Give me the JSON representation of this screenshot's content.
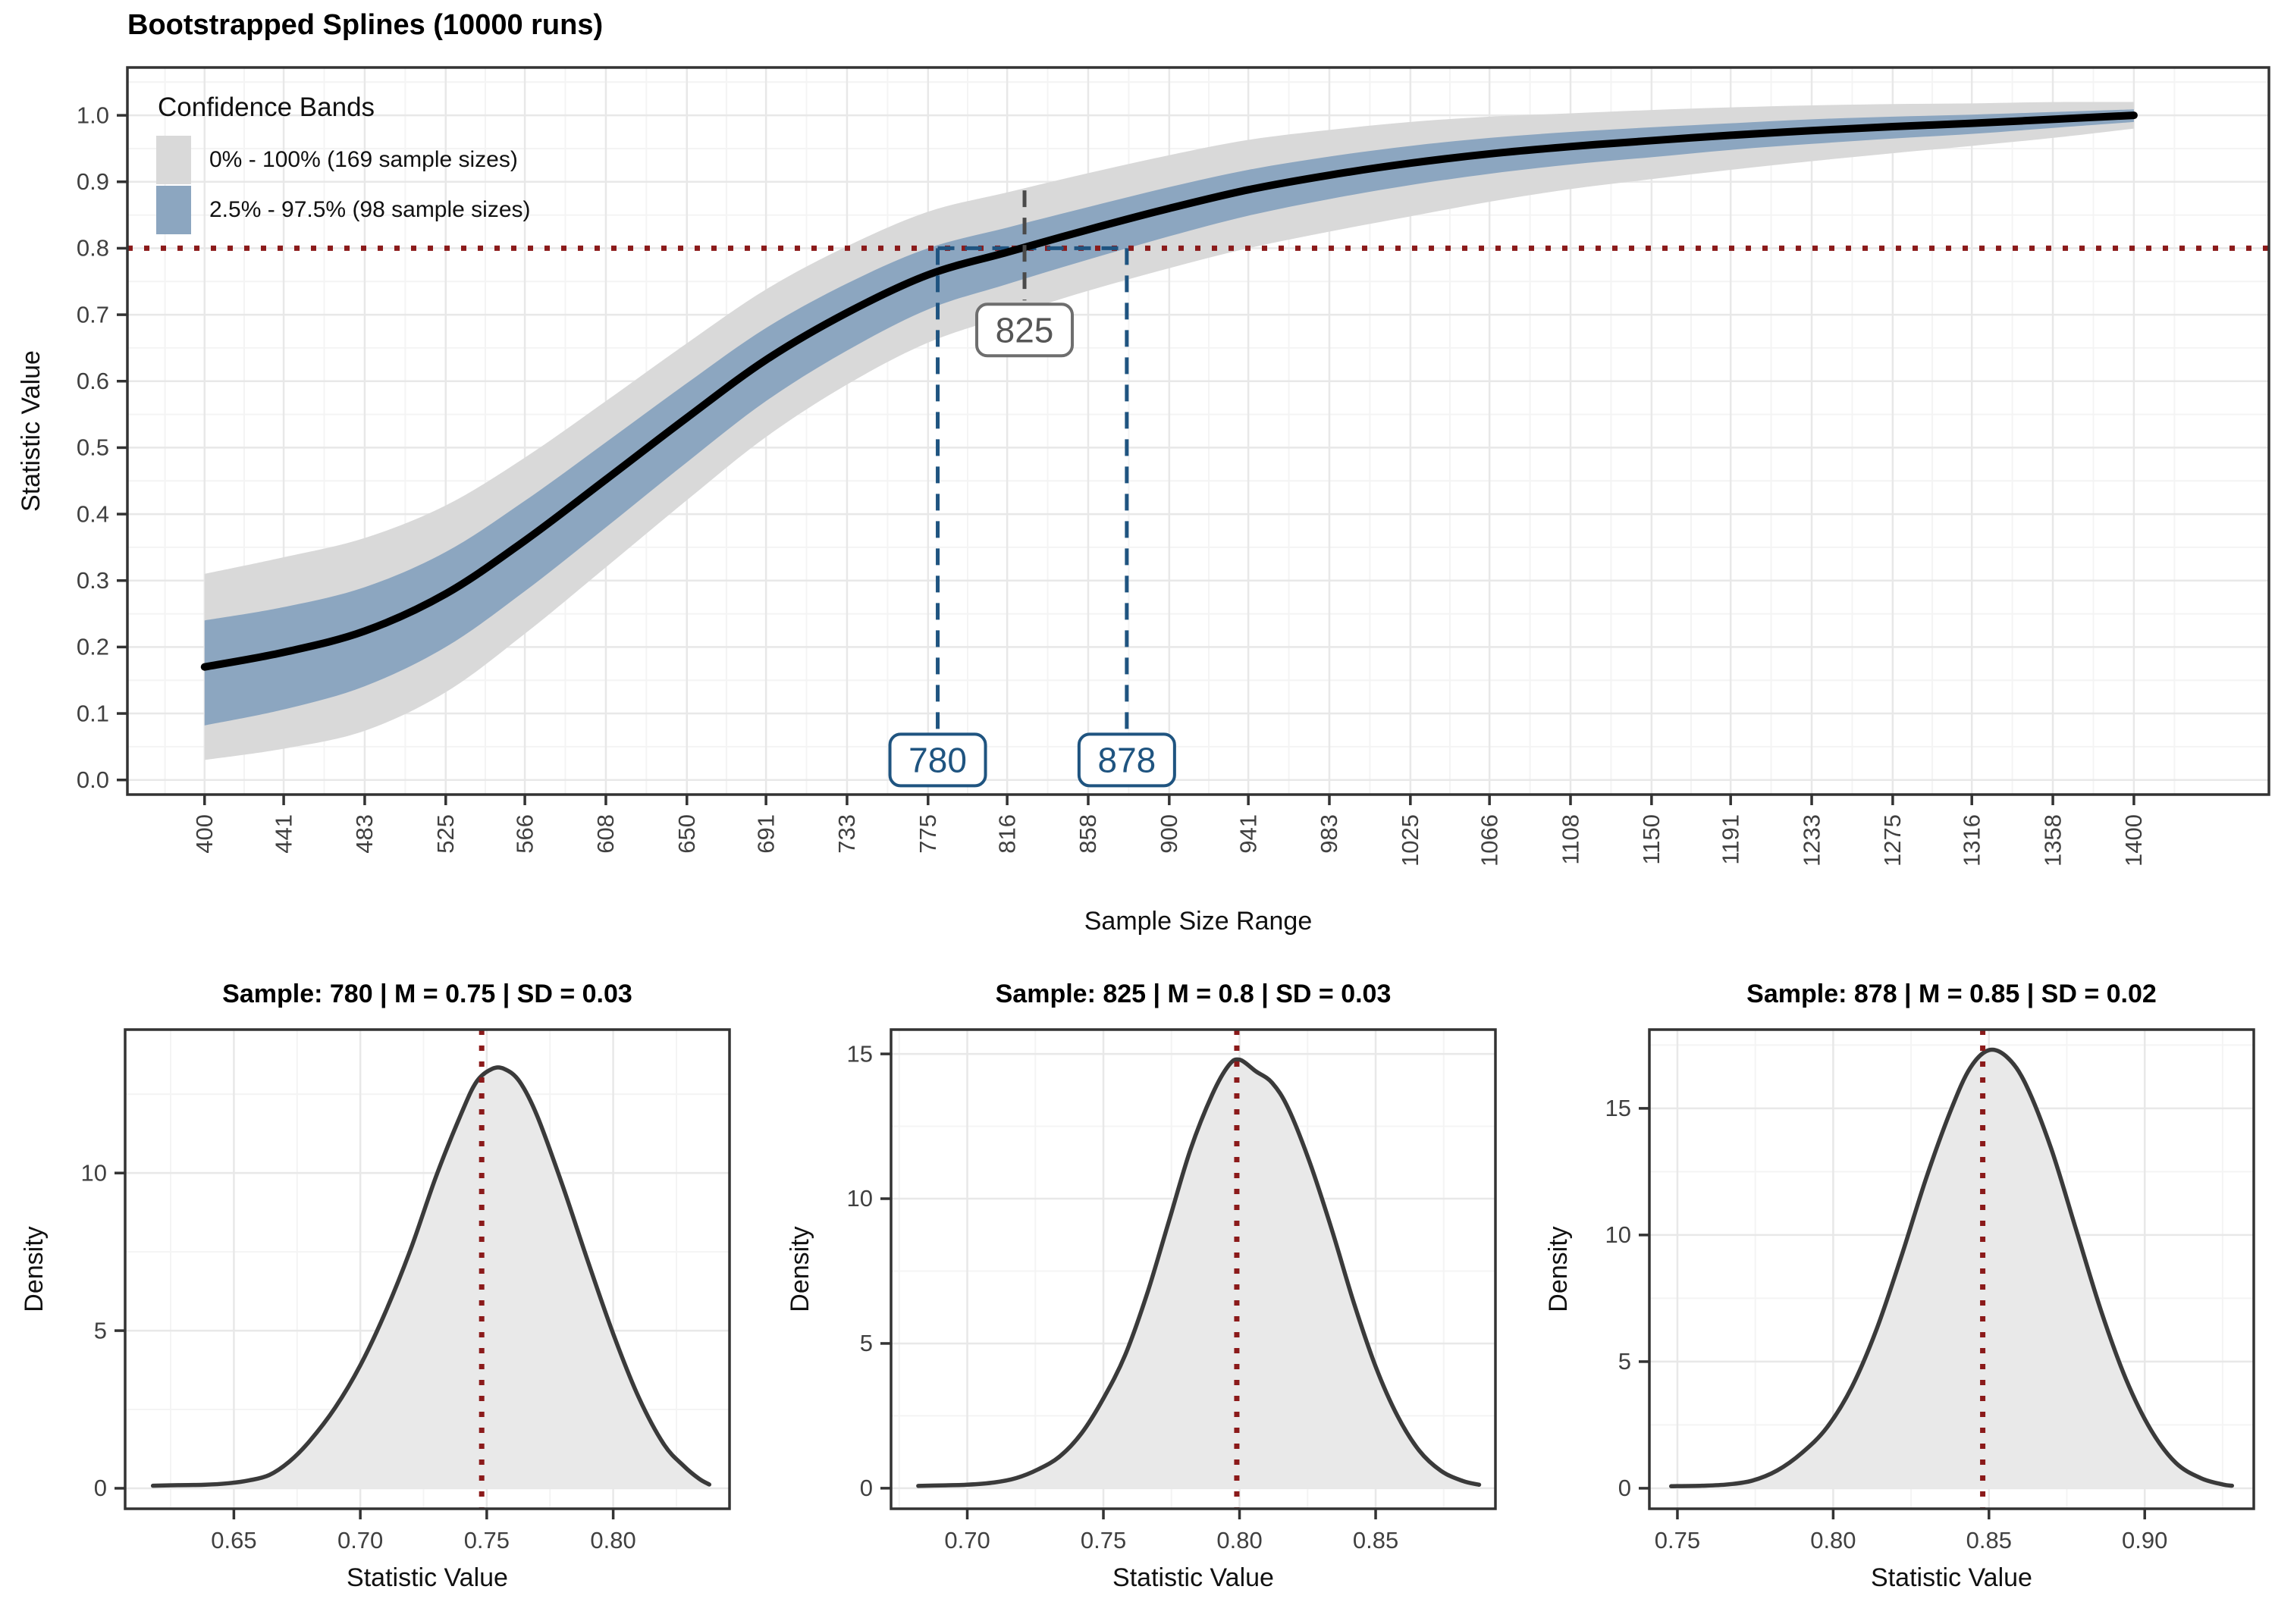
{
  "page": {
    "background": "#ffffff"
  },
  "colors": {
    "band_outer": "#D9D9D9",
    "band_inner": "#8CA6C0",
    "spline": "#000000",
    "target_red": "#8B1A1A",
    "interval_blue": "#1F5480",
    "crossing_gray": "#4A4A4A",
    "grid_major": "#E8E8E8",
    "grid_minor": "#F4F4F4",
    "panel_border": "#333333",
    "tick_label": "#404040"
  },
  "chart_data": [
    {
      "id": "spline-main",
      "type": "line",
      "title": "Bootstrapped Splines (10000 runs)",
      "xlabel": "Sample Size Range",
      "ylabel": "Statistic Value",
      "legend": {
        "title": "Confidence Bands",
        "position": "top-left",
        "entries": [
          {
            "label": "0% - 100% (169 sample sizes)",
            "color": "#D9D9D9"
          },
          {
            "label": "2.5% - 97.5% (98 sample sizes)",
            "color": "#8CA6C0"
          }
        ]
      },
      "xlim": [
        360,
        1470
      ],
      "ylim": [
        -0.022,
        1.072
      ],
      "x_tick_values": [
        400,
        441,
        483,
        525,
        566,
        608,
        650,
        691,
        733,
        775,
        816,
        858,
        900,
        941,
        983,
        1025,
        1066,
        1108,
        1150,
        1191,
        1233,
        1275,
        1316,
        1358,
        1400
      ],
      "x_tick_labels": [
        "400",
        "441",
        "483",
        "525",
        "566",
        "608",
        "650",
        "691",
        "733",
        "775",
        "816",
        "858",
        "900",
        "941",
        "983",
        "1025",
        "1066",
        "1108",
        "1150",
        "1191",
        "1233",
        "1275",
        "1316",
        "1358",
        "1400"
      ],
      "y_tick_values": [
        0,
        0.1,
        0.2,
        0.3,
        0.4,
        0.5,
        0.6,
        0.7,
        0.8,
        0.9,
        1.0
      ],
      "y_tick_labels": [
        "0.0",
        "0.1",
        "0.2",
        "0.3",
        "0.4",
        "0.5",
        "0.6",
        "0.7",
        "0.8",
        "0.9",
        "1.0"
      ],
      "x": [
        400,
        441,
        483,
        525,
        566,
        608,
        650,
        691,
        733,
        775,
        816,
        858,
        900,
        941,
        983,
        1025,
        1066,
        1108,
        1150,
        1191,
        1233,
        1275,
        1316,
        1358,
        1400
      ],
      "series": [
        {
          "name": "0% - 100% (169 sample sizes)",
          "type": "band",
          "color": "#D9D9D9",
          "upper": [
            0.31,
            0.335,
            0.364,
            0.413,
            0.485,
            0.57,
            0.657,
            0.738,
            0.803,
            0.855,
            0.884,
            0.913,
            0.94,
            0.963,
            0.978,
            0.99,
            0.998,
            1.003,
            1.008,
            1.012,
            1.015,
            1.017,
            1.018,
            1.02,
            1.02
          ],
          "lower": [
            0.03,
            0.047,
            0.074,
            0.132,
            0.22,
            0.32,
            0.421,
            0.516,
            0.595,
            0.658,
            0.698,
            0.736,
            0.77,
            0.8,
            0.825,
            0.848,
            0.87,
            0.889,
            0.904,
            0.918,
            0.931,
            0.943,
            0.954,
            0.966,
            0.98
          ]
        },
        {
          "name": "2.5% - 97.5% (98 sample sizes)",
          "type": "band",
          "color": "#8CA6C0",
          "upper": [
            0.24,
            0.26,
            0.29,
            0.343,
            0.42,
            0.508,
            0.597,
            0.68,
            0.747,
            0.8,
            0.831,
            0.862,
            0.892,
            0.918,
            0.938,
            0.954,
            0.966,
            0.975,
            0.982,
            0.988,
            0.994,
            0.998,
            1.001,
            1.005,
            1.009
          ],
          "lower": [
            0.082,
            0.106,
            0.141,
            0.2,
            0.284,
            0.38,
            0.478,
            0.57,
            0.646,
            0.708,
            0.746,
            0.783,
            0.818,
            0.849,
            0.874,
            0.895,
            0.912,
            0.926,
            0.937,
            0.948,
            0.957,
            0.965,
            0.972,
            0.981,
            0.99
          ]
        },
        {
          "name": "Mean bootstrapped spline",
          "type": "line",
          "color": "#000000",
          "values": [
            0.17,
            0.192,
            0.224,
            0.28,
            0.36,
            0.452,
            0.545,
            0.632,
            0.703,
            0.76,
            0.794,
            0.828,
            0.86,
            0.888,
            0.91,
            0.928,
            0.942,
            0.953,
            0.962,
            0.97,
            0.977,
            0.983,
            0.988,
            0.994,
            1.0
          ]
        }
      ],
      "annotations": {
        "target_hline": {
          "y": 0.8,
          "color": "#8B1A1A",
          "style": "dotted"
        },
        "interval_segment": {
          "y": 0.8,
          "x1": 780,
          "x2": 878,
          "color": "#1F5480",
          "style": "dashed"
        },
        "vlines": [
          {
            "x": 780,
            "label": "780",
            "from_y": 0.8,
            "label_at_y": 0.03,
            "color": "#1F5480",
            "text_color": "#1F5480",
            "border_color": "#1F5480",
            "style": "dashed"
          },
          {
            "x": 878,
            "label": "878",
            "from_y": 0.8,
            "label_at_y": 0.03,
            "color": "#1F5480",
            "text_color": "#1F5480",
            "border_color": "#1F5480",
            "style": "dashed"
          },
          {
            "x": 825,
            "label": "825",
            "from_y": 0.887,
            "label_at_y": 0.677,
            "color": "#4A4A4A",
            "text_color": "#565656",
            "border_color": "#6E6E6E",
            "style": "dashed"
          }
        ]
      }
    },
    {
      "id": "density-780",
      "type": "area",
      "title": "Sample: 780 | M = 0.75 | SD = 0.03",
      "sample": 780,
      "mean": 0.75,
      "sd": 0.03,
      "xlabel": "Statistic Value",
      "ylabel": "Density",
      "xlim": [
        0.607,
        0.846
      ],
      "ylim": [
        -0.65,
        14.55
      ],
      "x_tick_values": [
        0.65,
        0.7,
        0.75,
        0.8
      ],
      "x_tick_labels": [
        "0.65",
        "0.70",
        "0.75",
        "0.80"
      ],
      "y_tick_values": [
        0,
        5,
        10
      ],
      "y_tick_labels": [
        "0",
        "5",
        "10"
      ],
      "mean_line": {
        "x": 0.748,
        "color": "#8B1A1A",
        "style": "dotted"
      },
      "curve": {
        "stroke": "#3A3A3A",
        "fill": "#E9E9E9",
        "points": [
          [
            0.618,
            0.08
          ],
          [
            0.628,
            0.1
          ],
          [
            0.638,
            0.11
          ],
          [
            0.648,
            0.16
          ],
          [
            0.656,
            0.25
          ],
          [
            0.664,
            0.42
          ],
          [
            0.672,
            0.85
          ],
          [
            0.68,
            1.5
          ],
          [
            0.69,
            2.55
          ],
          [
            0.7,
            3.9
          ],
          [
            0.71,
            5.6
          ],
          [
            0.72,
            7.6
          ],
          [
            0.73,
            9.9
          ],
          [
            0.74,
            11.9
          ],
          [
            0.746,
            12.9
          ],
          [
            0.752,
            13.3
          ],
          [
            0.757,
            13.3
          ],
          [
            0.763,
            12.9
          ],
          [
            0.77,
            11.8
          ],
          [
            0.78,
            9.6
          ],
          [
            0.79,
            7.2
          ],
          [
            0.8,
            4.9
          ],
          [
            0.81,
            2.9
          ],
          [
            0.82,
            1.4
          ],
          [
            0.828,
            0.7
          ],
          [
            0.834,
            0.3
          ],
          [
            0.838,
            0.12
          ]
        ]
      }
    },
    {
      "id": "density-825",
      "type": "area",
      "title": "Sample: 825 | M = 0.8 | SD = 0.03",
      "sample": 825,
      "mean": 0.8,
      "sd": 0.03,
      "xlabel": "Statistic Value",
      "ylabel": "Density",
      "xlim": [
        0.672,
        0.894
      ],
      "ylim": [
        -0.71,
        15.84
      ],
      "x_tick_values": [
        0.7,
        0.75,
        0.8,
        0.85
      ],
      "x_tick_labels": [
        "0.70",
        "0.75",
        "0.80",
        "0.85"
      ],
      "y_tick_values": [
        0,
        5,
        10,
        15
      ],
      "y_tick_labels": [
        "0",
        "5",
        "10",
        "15"
      ],
      "mean_line": {
        "x": 0.799,
        "color": "#8B1A1A",
        "style": "dotted"
      },
      "curve": {
        "stroke": "#3A3A3A",
        "fill": "#E9E9E9",
        "points": [
          [
            0.682,
            0.08
          ],
          [
            0.692,
            0.1
          ],
          [
            0.7,
            0.12
          ],
          [
            0.71,
            0.2
          ],
          [
            0.718,
            0.35
          ],
          [
            0.726,
            0.65
          ],
          [
            0.734,
            1.1
          ],
          [
            0.742,
            1.9
          ],
          [
            0.75,
            3.1
          ],
          [
            0.758,
            4.6
          ],
          [
            0.766,
            6.7
          ],
          [
            0.774,
            9.2
          ],
          [
            0.782,
            11.7
          ],
          [
            0.79,
            13.6
          ],
          [
            0.796,
            14.6
          ],
          [
            0.8,
            14.8
          ],
          [
            0.806,
            14.4
          ],
          [
            0.812,
            14.0
          ],
          [
            0.818,
            13.1
          ],
          [
            0.826,
            11.2
          ],
          [
            0.834,
            8.9
          ],
          [
            0.842,
            6.4
          ],
          [
            0.85,
            4.2
          ],
          [
            0.858,
            2.5
          ],
          [
            0.866,
            1.3
          ],
          [
            0.874,
            0.6
          ],
          [
            0.882,
            0.25
          ],
          [
            0.888,
            0.12
          ]
        ]
      }
    },
    {
      "id": "density-878",
      "type": "area",
      "title": "Sample: 878 | M = 0.85 | SD = 0.02",
      "sample": 878,
      "mean": 0.85,
      "sd": 0.02,
      "xlabel": "Statistic Value",
      "ylabel": "Density",
      "xlim": [
        0.741,
        0.935
      ],
      "ylim": [
        -0.81,
        18.11
      ],
      "x_tick_values": [
        0.75,
        0.8,
        0.85,
        0.9
      ],
      "x_tick_labels": [
        "0.75",
        "0.80",
        "0.85",
        "0.90"
      ],
      "y_tick_values": [
        0,
        5,
        10,
        15
      ],
      "y_tick_labels": [
        "0",
        "5",
        "10",
        "15"
      ],
      "mean_line": {
        "x": 0.848,
        "color": "#8B1A1A",
        "style": "dotted"
      },
      "curve": {
        "stroke": "#3A3A3A",
        "fill": "#E9E9E9",
        "points": [
          [
            0.748,
            0.08
          ],
          [
            0.758,
            0.1
          ],
          [
            0.766,
            0.15
          ],
          [
            0.774,
            0.3
          ],
          [
            0.782,
            0.7
          ],
          [
            0.79,
            1.4
          ],
          [
            0.798,
            2.4
          ],
          [
            0.806,
            4.0
          ],
          [
            0.814,
            6.3
          ],
          [
            0.822,
            9.2
          ],
          [
            0.83,
            12.3
          ],
          [
            0.838,
            15.0
          ],
          [
            0.844,
            16.6
          ],
          [
            0.85,
            17.3
          ],
          [
            0.856,
            17.0
          ],
          [
            0.862,
            15.9
          ],
          [
            0.87,
            13.4
          ],
          [
            0.878,
            10.2
          ],
          [
            0.886,
            7.0
          ],
          [
            0.894,
            4.3
          ],
          [
            0.902,
            2.3
          ],
          [
            0.91,
            1.0
          ],
          [
            0.918,
            0.4
          ],
          [
            0.925,
            0.15
          ],
          [
            0.928,
            0.1
          ]
        ]
      }
    }
  ]
}
